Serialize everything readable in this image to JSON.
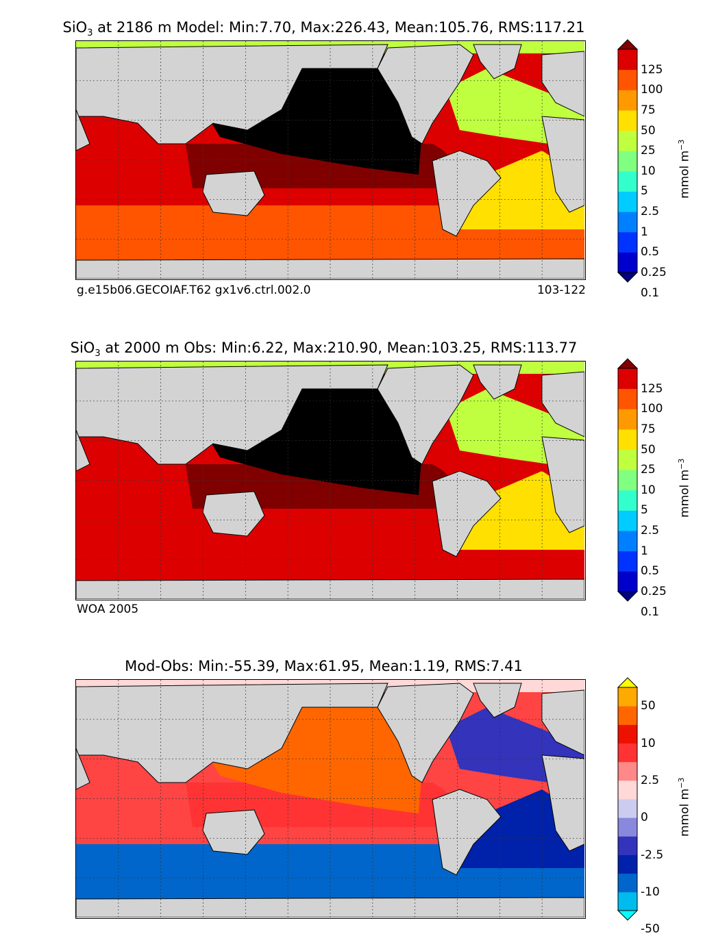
{
  "panels": [
    {
      "id": "model",
      "title_prefix": "SiO",
      "title_sub": "3",
      "title_rest": " at 2186 m Model: Min:7.70, Max:226.43, Mean:105.76, RMS:117.21",
      "caption_left": "g.e15b06.GECOIAF.T62 gx1v6.ctrl.002.0",
      "caption_right": "103-122",
      "colorbar": {
        "labels": [
          "125",
          "100",
          "75",
          "50",
          "25",
          "10",
          "5",
          "2.5",
          "1",
          "0.5",
          "0.25",
          "0.1"
        ],
        "colors": [
          "#000080",
          "#0000cd",
          "#0033ff",
          "#0080ff",
          "#00ccff",
          "#33ffcc",
          "#80ff80",
          "#bfff40",
          "#ffe000",
          "#ff9900",
          "#ff5500",
          "#dd0000",
          "#800000"
        ],
        "unit": "mmol m",
        "unit_sup": "−3"
      },
      "map_fill": {
        "north_pacific": "#000000",
        "mid_pacific": "#800000",
        "south_indo_pacific": "#dd0000",
        "southern": "#ff5500",
        "atlantic_north": "#bfff40",
        "atlantic_south": "#ffe000",
        "arctic": "#bfff40"
      }
    },
    {
      "id": "obs",
      "title_prefix": "SiO",
      "title_sub": "3",
      "title_rest": " at 2000 m Obs: Min:6.22, Max:210.90, Mean:103.25, RMS:113.77",
      "caption_left": "WOA 2005",
      "caption_right": "",
      "colorbar": {
        "labels": [
          "125",
          "100",
          "75",
          "50",
          "25",
          "10",
          "5",
          "2.5",
          "1",
          "0.5",
          "0.25",
          "0.1"
        ],
        "colors": [
          "#000080",
          "#0000cd",
          "#0033ff",
          "#0080ff",
          "#00ccff",
          "#33ffcc",
          "#80ff80",
          "#bfff40",
          "#ffe000",
          "#ff9900",
          "#ff5500",
          "#dd0000",
          "#800000"
        ],
        "unit": "mmol m",
        "unit_sup": "−3"
      },
      "map_fill": {
        "north_pacific": "#000000",
        "mid_pacific": "#800000",
        "south_indo_pacific": "#dd0000",
        "southern": "#dd0000",
        "atlantic_north": "#bfff40",
        "atlantic_south": "#ffe000",
        "arctic": "#bfff40"
      }
    },
    {
      "id": "diff",
      "title_prefix": "",
      "title_sub": "",
      "title_rest": "Mod-Obs: Min:-55.39, Max:61.95, Mean:1.19, RMS:7.41",
      "caption_left": "",
      "caption_right": "",
      "colorbar": {
        "labels": [
          "50",
          "10",
          "2.5",
          "0",
          "-2.5",
          "-10",
          "-50"
        ],
        "colors": [
          "#00ffff",
          "#00bbee",
          "#0066cc",
          "#0022aa",
          "#3333bb",
          "#8888dd",
          "#ccccf0",
          "#ffd8d8",
          "#ff8888",
          "#ff3333",
          "#ee1100",
          "#ff6600",
          "#ffaa00",
          "#ffff00"
        ],
        "unit": "mmol m",
        "unit_sup": "−3"
      },
      "map_fill": {
        "north_pacific": "#ff6600",
        "mid_pacific": "#ff3333",
        "south_indo_pacific": "#ff4444",
        "southern": "#0066cc",
        "atlantic_north": "#3333bb",
        "atlantic_south": "#0022aa",
        "arctic": "#ffd8d8"
      }
    }
  ]
}
